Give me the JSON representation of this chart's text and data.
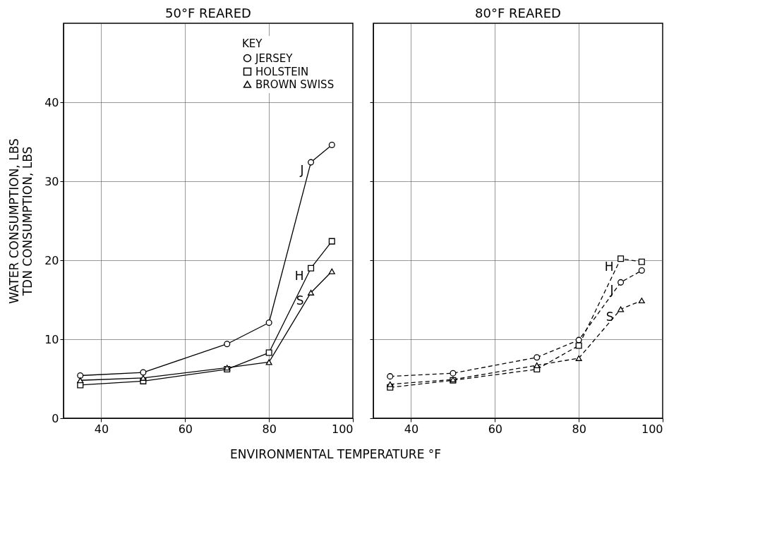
{
  "chart_data": [
    {
      "type": "line",
      "title": "50°F REARED",
      "ylabel": "WATER CONSUMPTION, LBS\nTDN CONSUMPTION, LBS",
      "xlabel": "ENVIRONMENTAL  TEMPERATURE °F",
      "legend_title": "KEY",
      "legend": "top right",
      "grid": true,
      "line_style": "solid",
      "xlim": [
        31,
        100
      ],
      "xticks": [
        40,
        60,
        80,
        100
      ],
      "ylim": [
        0,
        50
      ],
      "yticks": [
        0,
        10,
        20,
        30,
        40
      ],
      "x": [
        35,
        50,
        70,
        80,
        90,
        95
      ],
      "series": [
        {
          "name": "JERSEY",
          "color": "#000000",
          "marker": "circle",
          "values": [
            5.4,
            5.8,
            9.4,
            12.1,
            32.4,
            34.6
          ]
        },
        {
          "name": "HOLSTEIN",
          "color": "#000000",
          "marker": "square",
          "values": [
            4.2,
            4.7,
            6.2,
            8.3,
            19.0,
            22.4
          ]
        },
        {
          "name": "BROWN  SWISS",
          "color": "#000000",
          "marker": "triangle",
          "values": [
            4.8,
            5.1,
            6.4,
            7.1,
            15.9,
            18.6
          ]
        }
      ],
      "annotations": [
        "J",
        "H",
        "S"
      ]
    },
    {
      "type": "line",
      "title": "80°F REARED",
      "grid": true,
      "line_style": "dashed",
      "tick_labels": "x",
      "xlim": [
        31,
        100
      ],
      "xticks": [
        40,
        60,
        80,
        100
      ],
      "ylim": [
        0,
        50
      ],
      "yticks": [
        0,
        10,
        20,
        30,
        40
      ],
      "x": [
        35,
        50,
        70,
        80,
        90,
        95
      ],
      "series": [
        {
          "color": "#000000",
          "marker": "circle",
          "values": [
            5.3,
            5.7,
            7.7,
            9.9,
            17.2,
            18.7
          ]
        },
        {
          "color": "#000000",
          "marker": "square",
          "values": [
            3.9,
            4.8,
            6.2,
            9.2,
            20.2,
            19.8
          ]
        },
        {
          "color": "#000000",
          "marker": "triangle",
          "values": [
            4.3,
            4.9,
            6.7,
            7.6,
            13.8,
            14.9
          ]
        }
      ],
      "annotations": [
        "J",
        "H",
        "S"
      ]
    }
  ]
}
